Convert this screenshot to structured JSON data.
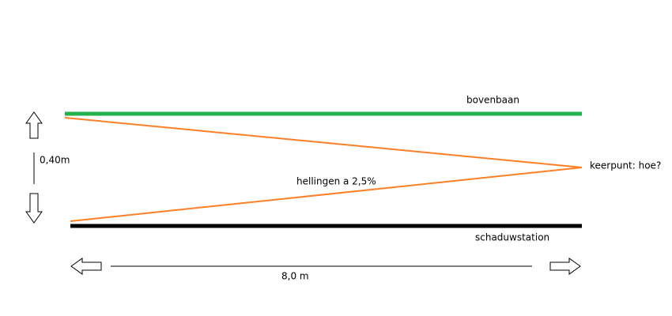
{
  "labels": {
    "top_track": "bovenbaan",
    "turn_point": "keerpunt: hoe?",
    "slopes": "hellingen a 2,5%",
    "shadow_station": "schaduwstation",
    "height": "0,40m",
    "length": "8,0 m"
  }
}
